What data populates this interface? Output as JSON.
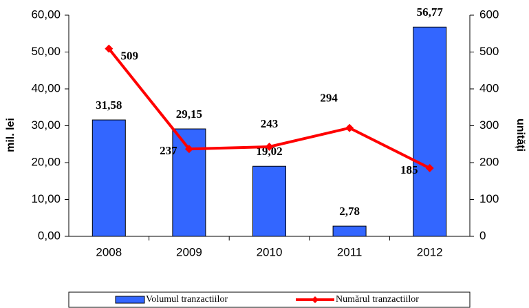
{
  "chart_data": {
    "type": "bar-line",
    "categories": [
      "2008",
      "2009",
      "2010",
      "2011",
      "2012"
    ],
    "series": [
      {
        "name": "Volumul tranzactiilor",
        "type": "bar",
        "color": "#3366ff",
        "values": [
          31.58,
          29.15,
          19.02,
          2.78,
          56.77
        ],
        "value_labels": [
          "31,58",
          "29,15",
          "19,02",
          "2,78",
          "56,77"
        ],
        "label_color": "#4f7fe0"
      },
      {
        "name": "Numărul tranzactiilor",
        "type": "line",
        "axis": "y2",
        "color": "#ff0000",
        "values": [
          509,
          237,
          243,
          294,
          185
        ],
        "label_color": "#ee1111"
      }
    ],
    "ylabel": "mil. lei",
    "y2label": "unități",
    "ylim": [
      0,
      60
    ],
    "yticks": [
      {
        "value": 0,
        "label": "0,00"
      },
      {
        "value": 10,
        "label": "10,00"
      },
      {
        "value": 20,
        "label": "20,00"
      },
      {
        "value": 30,
        "label": "30,00"
      },
      {
        "value": 40,
        "label": "40,00"
      },
      {
        "value": 50,
        "label": "50,00"
      },
      {
        "value": 60,
        "label": "60,00"
      }
    ],
    "y2lim": [
      0,
      600
    ],
    "y2ticks": [
      0,
      100,
      200,
      300,
      400,
      500,
      600
    ],
    "legend": "bottom"
  }
}
